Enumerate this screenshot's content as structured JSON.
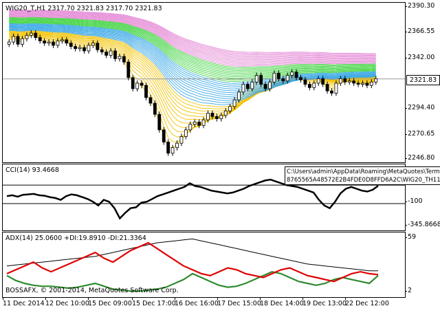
{
  "main": {
    "title": "WIG20_T,H1  2317.70 2321.83 2317.70 2321.83",
    "price_ticks": [
      "2390.30",
      "2366.55",
      "2342.00",
      "2318.25",
      "2294.40",
      "2270.65",
      "2246.80"
    ],
    "current_price": "2321.83",
    "colors": {
      "bull": "#ffffff",
      "bear": "#000000",
      "fan_yellow": "#f2c200",
      "fan_blue": "#3aa7e6",
      "fan_green": "#3fd33f",
      "fan_pink": "#e48ad6"
    }
  },
  "cci": {
    "title": "CCI(14) 93.4668",
    "levels": [
      "100",
      "-100",
      "-345.8668"
    ],
    "line_color": "#000000"
  },
  "adx": {
    "title": "ADX(14) 25.0600 +DI:19.8910 -DI:21.3364",
    "copyright": "BOSSAFX, © 2001-2014, MetaQuotes Software Corp.",
    "scale": [
      "59",
      "2"
    ],
    "colors": {
      "adx": "#000000",
      "plus_di": "#2e8b2e",
      "minus_di": "#e00000"
    }
  },
  "tooltip": {
    "line1": "C:\\Users\\admin\\AppData\\Roaming\\MetaQuotes\\Term",
    "line2": "8765565A48572E2B4FDE0D8FFD6A2C\\WIG20_TH11.png"
  },
  "x_axis": [
    "11 Dec 2014",
    "12 Dec 10:00",
    "15 Dec 09:00",
    "15 Dec 17:00",
    "16 Dec 16:00",
    "17 Dec 15:00",
    "18 Dec 14:00",
    "19 Dec 13:00",
    "22 Dec 12:00"
  ],
  "chart_data": {
    "type": "candlestick",
    "title": "WIG20_T,H1",
    "ylim": [
      2246.8,
      2390.3
    ],
    "close": [
      2355,
      2360,
      2353,
      2358,
      2361,
      2363,
      2359,
      2356,
      2354,
      2355,
      2352,
      2356,
      2357,
      2354,
      2351,
      2349,
      2350,
      2347,
      2352,
      2354,
      2348,
      2346,
      2343,
      2347,
      2340,
      2342,
      2337,
      2323,
      2313,
      2318,
      2316,
      2305,
      2300,
      2290,
      2276,
      2265,
      2255,
      2260,
      2264,
      2270,
      2276,
      2281,
      2283,
      2280,
      2285,
      2291,
      2288,
      2286,
      2289,
      2293,
      2297,
      2303,
      2310,
      2317,
      2313,
      2319,
      2325,
      2317,
      2313,
      2319,
      2327,
      2322,
      2320,
      2325,
      2328,
      2323,
      2321,
      2317,
      2314,
      2318,
      2322,
      2317,
      2311,
      2309,
      2318,
      2322,
      2319,
      2320,
      2318,
      2317,
      2318,
      2316,
      2319,
      2322
    ],
    "cci_values": [
      -20,
      -10,
      -25,
      -5,
      0,
      5,
      -10,
      -15,
      -30,
      -40,
      -60,
      -20,
      0,
      -10,
      -30,
      -50,
      -80,
      -120,
      -60,
      -80,
      -150,
      -260,
      -200,
      -150,
      -140,
      -90,
      -80,
      -50,
      -20,
      0,
      20,
      40,
      60,
      80,
      120,
      90,
      80,
      60,
      40,
      30,
      20,
      10,
      20,
      40,
      60,
      90,
      110,
      130,
      150,
      160,
      140,
      120,
      100,
      90,
      80,
      60,
      40,
      20,
      -60,
      -120,
      -150,
      -80,
      10,
      60,
      80,
      60,
      40,
      30,
      50,
      93
    ],
    "adx_values": [
      30,
      31,
      32,
      33,
      34,
      35,
      36,
      37,
      38,
      39,
      40,
      42,
      44,
      46,
      48,
      50,
      52,
      54,
      55,
      56,
      57,
      58,
      56,
      54,
      52,
      50,
      48,
      46,
      44,
      42,
      40,
      38,
      36,
      34,
      32,
      31,
      30,
      29,
      28,
      27,
      26,
      25,
      25
    ],
    "plus_di_values": [
      20,
      15,
      12,
      10,
      9,
      9,
      8,
      7,
      8,
      10,
      12,
      9,
      6,
      5,
      4,
      4,
      5,
      6,
      8,
      12,
      16,
      22,
      18,
      14,
      10,
      8,
      9,
      12,
      16,
      20,
      24,
      22,
      18,
      14,
      12,
      10,
      12,
      16,
      18,
      16,
      14,
      12,
      20
    ],
    "minus_di_values": [
      22,
      26,
      30,
      34,
      28,
      24,
      28,
      32,
      36,
      40,
      44,
      38,
      34,
      40,
      46,
      50,
      54,
      48,
      42,
      36,
      30,
      26,
      22,
      20,
      24,
      28,
      26,
      22,
      20,
      18,
      22,
      26,
      28,
      24,
      20,
      18,
      16,
      14,
      18,
      22,
      24,
      22,
      21
    ]
  }
}
